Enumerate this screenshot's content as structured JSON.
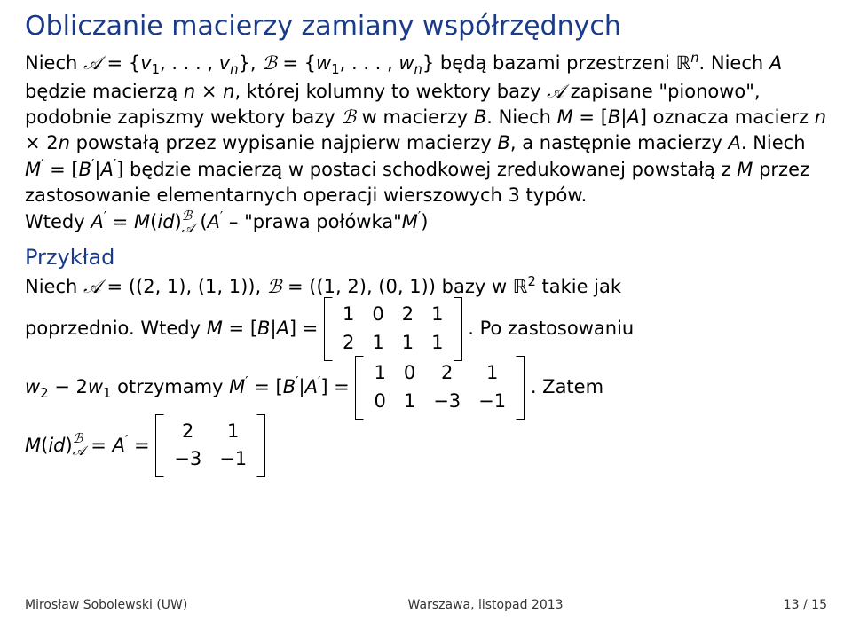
{
  "title": "Obliczanie macierzy zamiany współrzędnych",
  "para1_a": "Niech ",
  "calA": "𝒜",
  "eq": " = {",
  "v": "v",
  "comma": ", . . . , ",
  "close": "}, ",
  "calB": "ℬ",
  "eq2": " = {",
  "w": "w",
  "close2": "} będą bazami przestrzeni ",
  "R": "ℝ",
  "n": "n",
  "dot": ".",
  "para2": "Niech ",
  "A": "A",
  "para2b": " będzie macierzą ",
  "times": " × ",
  "para2c": ", której kolumny to wektory bazy ",
  "para2d": " zapisane \"pionowo\", podobnie zapiszmy wektory bazy ",
  "para2e": " w macierzy ",
  "B": "B",
  "para2f": ". Niech ",
  "M": "M",
  "para2g": " = [",
  "bar": "|",
  "para2h": "] oznacza macierz ",
  "twon": " × 2",
  "para2i": " powstałą przez wypisanie najpierw macierzy ",
  "para2j": ", a następnie macierzy ",
  "para2k": ". Niech ",
  "prime": "′",
  "para2l": "] będzie macierzą w postaci schodkowej zredukowanej powstałą z ",
  "para2m": " przez zastosowanie elementarnych operacji wierszowych 3 typów.",
  "para3a": "Wtedy ",
  "para3b": "(",
  "id": "id",
  "para3c": ")",
  "para3d": " (",
  "para3e": " – \"prawa połówka\"",
  "para3f": ")",
  "exHead": "Przykład",
  "ex1": "Niech ",
  "ex1b": " = ((2, 1), (1, 1)), ",
  "ex1c": " = ((1, 2), (0, 1)) bazy w ",
  "R2": "ℝ",
  "two": "2",
  "ex1d": " takie jak",
  "ex2a": "poprzednio. Wtedy ",
  "ex2b": "] = ",
  "m1": {
    "r1": [
      "1",
      "0",
      "2",
      "1"
    ],
    "r2": [
      "2",
      "1",
      "1",
      "1"
    ]
  },
  "ex2c": ". Po zastosowaniu",
  "ex3a": " − 2",
  "ex3b": " otrzymamy ",
  "ex3c": "] = ",
  "m2": {
    "r1": [
      "1",
      "0",
      "2",
      "1"
    ],
    "r2": [
      "0",
      "1",
      "−3",
      "−1"
    ]
  },
  "ex3d": ". Zatem",
  "ex4a": " = ",
  "m3": {
    "r1": [
      "2",
      "1"
    ],
    "r2": [
      "−3",
      "−1"
    ]
  },
  "footL": "Mirosław Sobolewski (UW)",
  "footC": "Warszawa, listopad 2013",
  "footR": "13 / 15"
}
